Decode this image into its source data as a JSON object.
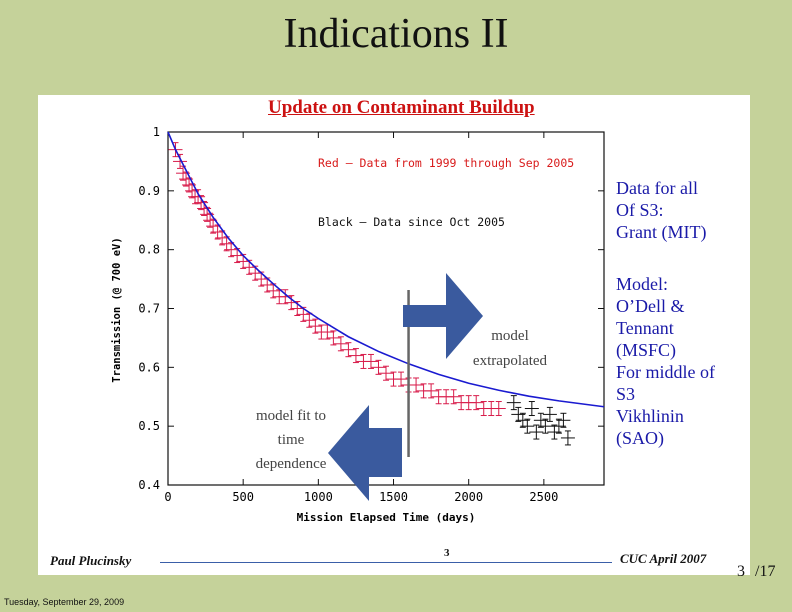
{
  "slide": {
    "title": "Indications II",
    "subtitle": "Update on Contaminant Buildup",
    "side_text": [
      "Data for all",
      "Of S3:",
      "Grant (MIT)",
      "",
      "Model:",
      "O’Dell &",
      "Tennant",
      "(MSFC)",
      "For middle of",
      "S3",
      "Vikhlinin",
      "(SAO)"
    ],
    "footer_left": "Paul Plucinsky",
    "footer_center": "3",
    "footer_right": "CUC April 2007",
    "page_number": "3",
    "page_total": "/17",
    "date": "Tuesday, September 29, 2009",
    "colors": {
      "background": "#c5d29a",
      "title_red": "#cc1111",
      "side_blue": "#1a1aa8",
      "arrow": "#3a5a9e"
    },
    "icons": {
      "right_arrow": "arrow-right-icon",
      "left_arrow": "arrow-left-icon"
    }
  },
  "chart_data": {
    "type": "scatter",
    "xlabel": "Mission Elapsed Time (days)",
    "ylabel": "Transmission (@ 700 eV)",
    "xlim": [
      0,
      2900
    ],
    "ylim": [
      0.4,
      1.0
    ],
    "x_ticks": [
      "0",
      "500",
      "1000",
      "1500",
      "2000",
      "2500"
    ],
    "y_ticks": [
      "0.4",
      "0.5",
      "0.6",
      "0.7",
      "0.8",
      "0.9",
      "1"
    ],
    "annotations": {
      "red_note": "Red – Data from 1999 through Sep 2005",
      "black_note": "Black – Data since Oct 2005",
      "extrapolated": [
        "model",
        "extrapolated"
      ],
      "fit": [
        "model fit to",
        "time",
        "dependence"
      ]
    },
    "divider_x": 1600,
    "series": [
      {
        "color": "#d81b4a",
        "points": [
          [
            50,
            0.97
          ],
          [
            80,
            0.95
          ],
          [
            100,
            0.93
          ],
          [
            120,
            0.92
          ],
          [
            140,
            0.91
          ],
          [
            160,
            0.9
          ],
          [
            180,
            0.89
          ],
          [
            200,
            0.89
          ],
          [
            220,
            0.88
          ],
          [
            240,
            0.87
          ],
          [
            260,
            0.86
          ],
          [
            280,
            0.85
          ],
          [
            300,
            0.84
          ],
          [
            330,
            0.83
          ],
          [
            360,
            0.82
          ],
          [
            390,
            0.81
          ],
          [
            420,
            0.8
          ],
          [
            460,
            0.79
          ],
          [
            500,
            0.78
          ],
          [
            540,
            0.77
          ],
          [
            580,
            0.76
          ],
          [
            620,
            0.75
          ],
          [
            660,
            0.74
          ],
          [
            700,
            0.73
          ],
          [
            740,
            0.72
          ],
          [
            780,
            0.72
          ],
          [
            820,
            0.71
          ],
          [
            860,
            0.7
          ],
          [
            900,
            0.69
          ],
          [
            940,
            0.68
          ],
          [
            980,
            0.67
          ],
          [
            1020,
            0.66
          ],
          [
            1060,
            0.66
          ],
          [
            1100,
            0.65
          ],
          [
            1150,
            0.64
          ],
          [
            1200,
            0.63
          ],
          [
            1250,
            0.62
          ],
          [
            1300,
            0.61
          ],
          [
            1350,
            0.61
          ],
          [
            1400,
            0.6
          ],
          [
            1450,
            0.59
          ],
          [
            1500,
            0.58
          ],
          [
            1550,
            0.58
          ],
          [
            1600,
            0.57
          ],
          [
            1650,
            0.57
          ],
          [
            1700,
            0.56
          ],
          [
            1750,
            0.56
          ],
          [
            1800,
            0.55
          ],
          [
            1850,
            0.55
          ],
          [
            1900,
            0.55
          ],
          [
            1950,
            0.54
          ],
          [
            2000,
            0.54
          ],
          [
            2050,
            0.54
          ],
          [
            2100,
            0.53
          ],
          [
            2150,
            0.53
          ],
          [
            2200,
            0.53
          ]
        ]
      },
      {
        "color": "#111111",
        "points": [
          [
            2300,
            0.54
          ],
          [
            2330,
            0.52
          ],
          [
            2360,
            0.51
          ],
          [
            2390,
            0.5
          ],
          [
            2420,
            0.53
          ],
          [
            2450,
            0.49
          ],
          [
            2480,
            0.51
          ],
          [
            2510,
            0.5
          ],
          [
            2540,
            0.52
          ],
          [
            2570,
            0.49
          ],
          [
            2600,
            0.5
          ],
          [
            2630,
            0.51
          ],
          [
            2660,
            0.48
          ]
        ]
      }
    ],
    "model_curve": {
      "color": "#1a1ad0",
      "x": [
        0,
        50,
        100,
        150,
        200,
        300,
        400,
        500,
        600,
        700,
        800,
        900,
        1000,
        1200,
        1400,
        1600,
        1800,
        2000,
        2200,
        2400,
        2600,
        2900
      ],
      "y": [
        1.0,
        0.97,
        0.945,
        0.92,
        0.895,
        0.855,
        0.82,
        0.79,
        0.765,
        0.742,
        0.72,
        0.7,
        0.683,
        0.652,
        0.627,
        0.606,
        0.588,
        0.573,
        0.561,
        0.551,
        0.543,
        0.533
      ]
    }
  }
}
